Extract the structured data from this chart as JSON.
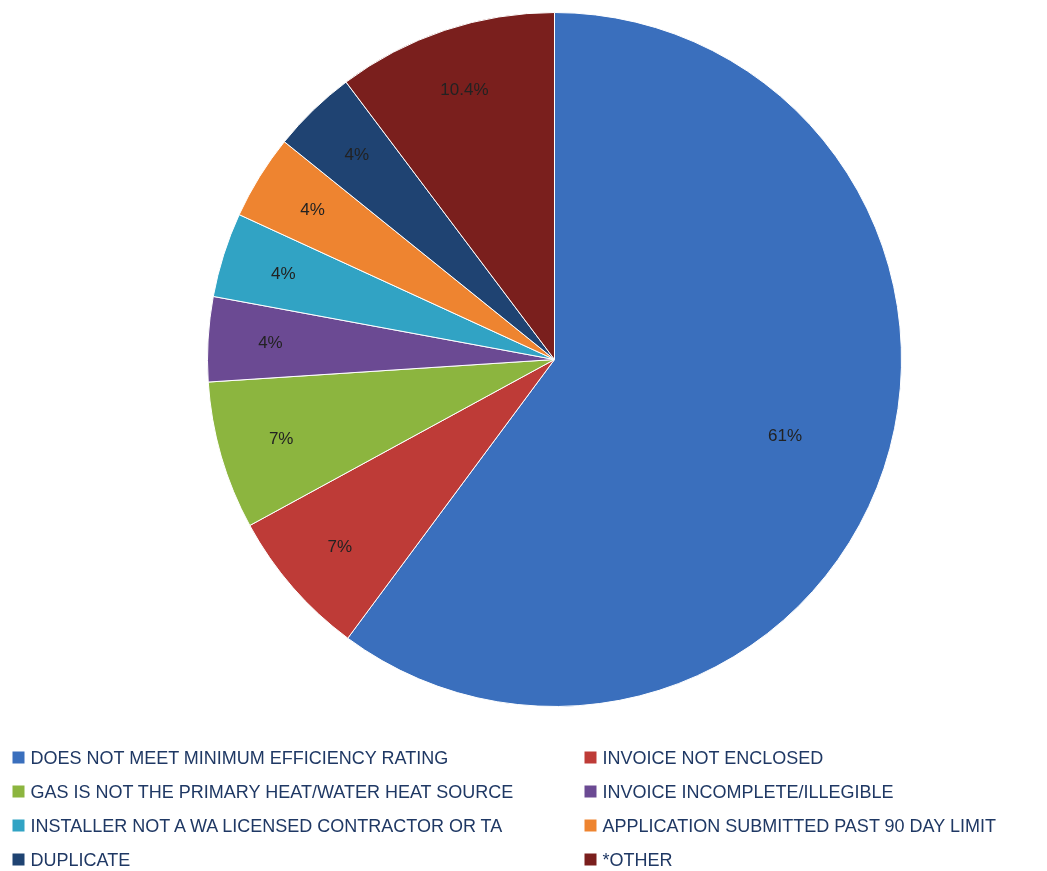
{
  "chart_data": {
    "type": "pie",
    "categories": [
      "DOES NOT MEET MINIMUM EFFICIENCY RATING",
      "INVOICE NOT ENCLOSED",
      "GAS IS NOT THE PRIMARY HEAT/WATER HEAT SOURCE",
      "INVOICE INCOMPLETE/ILLEGIBLE",
      "INSTALLER NOT A WA LICENSED CONTRACTOR OR TA",
      "APPLICATION SUBMITTED PAST 90 DAY LIMIT",
      "DUPLICATE",
      "*OTHER"
    ],
    "values": [
      61,
      7,
      7,
      4,
      4,
      4,
      4,
      10.4
    ],
    "value_labels": [
      "61%",
      "7%",
      "7%",
      "4%",
      "4%",
      "4%",
      "4%",
      "10.4%"
    ],
    "colors": [
      "#3a6fbd",
      "#be3b37",
      "#8cb53f",
      "#6b4a93",
      "#31a3c4",
      "#ee8430",
      "#1f4372",
      "#7a1f1d"
    ],
    "legend": "bottom"
  }
}
